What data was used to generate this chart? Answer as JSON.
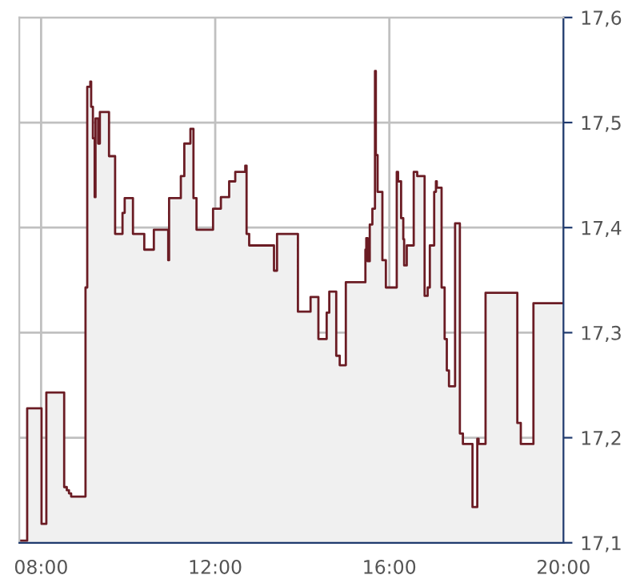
{
  "chart_data": {
    "type": "step",
    "x": [
      7.5,
      7.68,
      8.01,
      8.12,
      8.53,
      8.59,
      8.64,
      8.69,
      9.02,
      9.06,
      9.13,
      9.15,
      9.19,
      9.23,
      9.25,
      9.31,
      9.35,
      9.56,
      9.7,
      9.87,
      9.92,
      10.11,
      10.37,
      10.59,
      10.92,
      10.94,
      11.21,
      11.29,
      11.43,
      11.5,
      11.57,
      11.95,
      12.13,
      12.32,
      12.46,
      12.69,
      12.72,
      12.78,
      13.35,
      13.42,
      13.9,
      14.19,
      14.37,
      14.56,
      14.62,
      14.78,
      14.86,
      15.0,
      15.45,
      15.47,
      15.5,
      15.55,
      15.61,
      15.67,
      15.69,
      15.73,
      15.84,
      15.92,
      16.17,
      16.2,
      16.27,
      16.32,
      16.34,
      16.4,
      16.56,
      16.64,
      16.81,
      16.88,
      16.93,
      17.03,
      17.07,
      17.09,
      17.2,
      17.27,
      17.32,
      17.37,
      17.51,
      17.62,
      17.69,
      17.91,
      18.02,
      18.05,
      18.21,
      18.94,
      19.02,
      19.31,
      20.0
    ],
    "series": [
      {
        "type": "area",
        "color": "#f0f0f0",
        "values": [
          17.102,
          17.228,
          17.118,
          17.243,
          17.153,
          17.15,
          17.147,
          17.144,
          17.343,
          17.534,
          17.539,
          17.515,
          17.485,
          17.429,
          17.504,
          17.48,
          17.51,
          17.468,
          17.394,
          17.414,
          17.428,
          17.394,
          17.379,
          17.398,
          17.369,
          17.428,
          17.449,
          17.48,
          17.494,
          17.428,
          17.398,
          17.418,
          17.429,
          17.444,
          17.453,
          17.459,
          17.394,
          17.383,
          17.359,
          17.394,
          17.32,
          17.334,
          17.294,
          17.319,
          17.339,
          17.278,
          17.269,
          17.348,
          17.379,
          17.39,
          17.368,
          17.403,
          17.418,
          17.549,
          17.469,
          17.434,
          17.369,
          17.343,
          17.453,
          17.444,
          17.409,
          17.389,
          17.364,
          17.383,
          17.453,
          17.449,
          17.335,
          17.343,
          17.383,
          17.434,
          17.444,
          17.438,
          17.343,
          17.294,
          17.264,
          17.249,
          17.404,
          17.204,
          17.194,
          17.134,
          17.199,
          17.194,
          17.338,
          17.214,
          17.194,
          17.328,
          17.328
        ]
      },
      {
        "color": "#6b1c24",
        "values": [
          17.102,
          17.228,
          17.118,
          17.243,
          17.153,
          17.15,
          17.147,
          17.144,
          17.343,
          17.534,
          17.539,
          17.515,
          17.485,
          17.429,
          17.504,
          17.48,
          17.51,
          17.468,
          17.394,
          17.414,
          17.428,
          17.394,
          17.379,
          17.398,
          17.369,
          17.428,
          17.449,
          17.48,
          17.494,
          17.428,
          17.398,
          17.418,
          17.429,
          17.444,
          17.453,
          17.459,
          17.394,
          17.383,
          17.359,
          17.394,
          17.32,
          17.334,
          17.294,
          17.319,
          17.339,
          17.278,
          17.269,
          17.348,
          17.379,
          17.39,
          17.368,
          17.403,
          17.418,
          17.549,
          17.469,
          17.434,
          17.369,
          17.343,
          17.453,
          17.444,
          17.409,
          17.389,
          17.364,
          17.383,
          17.453,
          17.449,
          17.335,
          17.343,
          17.383,
          17.434,
          17.444,
          17.438,
          17.343,
          17.294,
          17.264,
          17.249,
          17.404,
          17.204,
          17.194,
          17.134,
          17.199,
          17.194,
          17.338,
          17.214,
          17.194,
          17.328,
          17.328
        ]
      }
    ],
    "xlim": [
      7.5,
      20
    ],
    "xticks": [
      {
        "value": 8,
        "label": "08:00"
      },
      {
        "value": 12,
        "label": "12:00"
      },
      {
        "value": 16,
        "label": "16:00"
      },
      {
        "value": 20,
        "label": "20:00"
      }
    ],
    "ylim": [
      17.1,
      17.6
    ],
    "yticks": [
      {
        "value": 17.1,
        "label": "17,1"
      },
      {
        "value": 17.2,
        "label": "17,2"
      },
      {
        "value": 17.3,
        "label": "17,3"
      },
      {
        "value": 17.4,
        "label": "17,4"
      },
      {
        "value": 17.5,
        "label": "17,5"
      },
      {
        "value": 17.6,
        "label": "17,6"
      }
    ],
    "grid": true,
    "legend": false
  }
}
